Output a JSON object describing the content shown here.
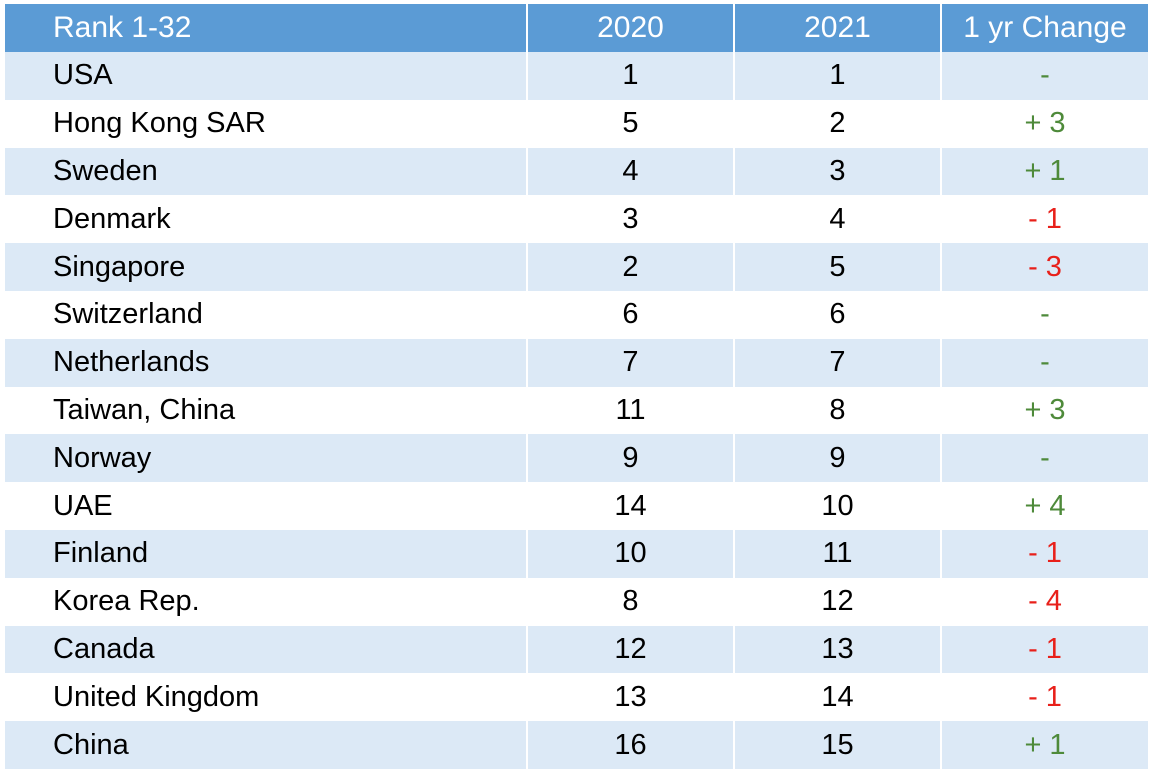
{
  "table": {
    "headers": [
      "Rank 1-32",
      "2020",
      "2021",
      "1 yr Change"
    ],
    "rows": [
      {
        "country": "USA",
        "r2020": "1",
        "r2021": "1",
        "change": "-",
        "dir": "none"
      },
      {
        "country": "Hong Kong SAR",
        "r2020": "5",
        "r2021": "2",
        "change": "+ 3",
        "dir": "up"
      },
      {
        "country": "Sweden",
        "r2020": "4",
        "r2021": "3",
        "change": "+ 1",
        "dir": "up"
      },
      {
        "country": "Denmark",
        "r2020": "3",
        "r2021": "4",
        "change": "- 1",
        "dir": "down"
      },
      {
        "country": "Singapore",
        "r2020": "2",
        "r2021": "5",
        "change": "- 3",
        "dir": "down"
      },
      {
        "country": "Switzerland",
        "r2020": "6",
        "r2021": "6",
        "change": "-",
        "dir": "none"
      },
      {
        "country": "Netherlands",
        "r2020": "7",
        "r2021": "7",
        "change": "-",
        "dir": "none"
      },
      {
        "country": "Taiwan, China",
        "r2020": "11",
        "r2021": "8",
        "change": "+ 3",
        "dir": "up"
      },
      {
        "country": "Norway",
        "r2020": "9",
        "r2021": "9",
        "change": "-",
        "dir": "none"
      },
      {
        "country": "UAE",
        "r2020": "14",
        "r2021": "10",
        "change": "+ 4",
        "dir": "up"
      },
      {
        "country": "Finland",
        "r2020": "10",
        "r2021": "11",
        "change": "- 1",
        "dir": "down"
      },
      {
        "country": "Korea Rep.",
        "r2020": "8",
        "r2021": "12",
        "change": "- 4",
        "dir": "down"
      },
      {
        "country": "Canada",
        "r2020": "12",
        "r2021": "13",
        "change": "- 1",
        "dir": "down"
      },
      {
        "country": "United Kingdom",
        "r2020": "13",
        "r2021": "14",
        "change": "- 1",
        "dir": "down"
      },
      {
        "country": "China",
        "r2020": "16",
        "r2021": "15",
        "change": "+ 1",
        "dir": "up"
      }
    ]
  },
  "colors": {
    "header_bg": "#5b9bd5",
    "stripe_bg": "#dce9f6",
    "up": "#4e8a3a",
    "down": "#e8201a"
  }
}
